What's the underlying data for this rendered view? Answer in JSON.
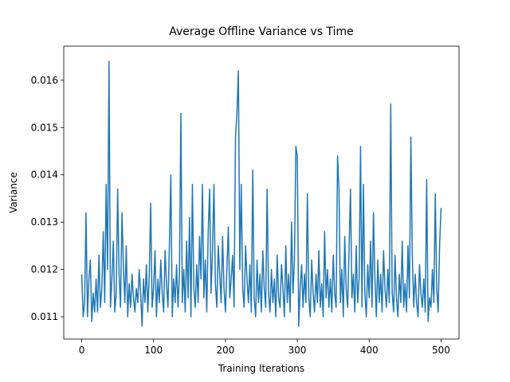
{
  "chart_data": {
    "type": "line",
    "title": "Average Offline Variance vs Time",
    "xlabel": "Training Iterations",
    "ylabel": "Variance",
    "color": "#1f77b4",
    "x": [
      0,
      2,
      4,
      6,
      8,
      10,
      12,
      14,
      16,
      18,
      20,
      22,
      24,
      26,
      28,
      30,
      32,
      34,
      36,
      38,
      40,
      42,
      44,
      46,
      48,
      50,
      52,
      54,
      56,
      58,
      60,
      62,
      64,
      66,
      68,
      70,
      72,
      74,
      76,
      78,
      80,
      82,
      84,
      86,
      88,
      90,
      92,
      94,
      96,
      98,
      100,
      102,
      104,
      106,
      108,
      110,
      112,
      114,
      116,
      118,
      120,
      122,
      124,
      126,
      128,
      130,
      132,
      134,
      136,
      138,
      140,
      142,
      144,
      146,
      148,
      150,
      152,
      154,
      156,
      158,
      160,
      162,
      164,
      166,
      168,
      170,
      172,
      174,
      176,
      178,
      180,
      182,
      184,
      186,
      188,
      190,
      192,
      194,
      196,
      198,
      200,
      202,
      204,
      206,
      208,
      210,
      212,
      214,
      216,
      218,
      220,
      222,
      224,
      226,
      228,
      230,
      232,
      234,
      236,
      238,
      240,
      242,
      244,
      246,
      248,
      250,
      252,
      254,
      256,
      258,
      260,
      262,
      264,
      266,
      268,
      270,
      272,
      274,
      276,
      278,
      280,
      282,
      284,
      286,
      288,
      290,
      292,
      294,
      296,
      298,
      300,
      302,
      304,
      306,
      308,
      310,
      312,
      314,
      316,
      318,
      320,
      322,
      324,
      326,
      328,
      330,
      332,
      334,
      336,
      338,
      340,
      342,
      344,
      346,
      348,
      350,
      352,
      354,
      356,
      358,
      360,
      362,
      364,
      366,
      368,
      370,
      372,
      374,
      376,
      378,
      380,
      382,
      384,
      386,
      388,
      390,
      392,
      394,
      396,
      398,
      400,
      402,
      404,
      406,
      408,
      410,
      412,
      414,
      416,
      418,
      420,
      422,
      424,
      426,
      428,
      430,
      432,
      434,
      436,
      438,
      440,
      442,
      444,
      446,
      448,
      450,
      452,
      454,
      456,
      458,
      460,
      462,
      464,
      466,
      468,
      470,
      472,
      474,
      476,
      478,
      480,
      482,
      484,
      486,
      488,
      490,
      492,
      494,
      496,
      498,
      500
    ],
    "values": [
      0.0119,
      0.011,
      0.0113,
      0.0132,
      0.011,
      0.0118,
      0.0122,
      0.0109,
      0.0115,
      0.0111,
      0.0118,
      0.0111,
      0.0123,
      0.0112,
      0.0116,
      0.0128,
      0.0113,
      0.0138,
      0.012,
      0.0164,
      0.0112,
      0.0118,
      0.0126,
      0.0111,
      0.0115,
      0.0137,
      0.0119,
      0.0112,
      0.0132,
      0.0121,
      0.0113,
      0.0125,
      0.011,
      0.0117,
      0.0112,
      0.0119,
      0.0114,
      0.0111,
      0.0116,
      0.0113,
      0.012,
      0.0115,
      0.0108,
      0.0118,
      0.0113,
      0.0121,
      0.0111,
      0.0119,
      0.0134,
      0.0112,
      0.0116,
      0.0124,
      0.011,
      0.0118,
      0.0113,
      0.0122,
      0.0115,
      0.0111,
      0.0124,
      0.0117,
      0.0112,
      0.0125,
      0.014,
      0.011,
      0.0118,
      0.0113,
      0.0121,
      0.0112,
      0.0119,
      0.0153,
      0.0113,
      0.012,
      0.0111,
      0.0126,
      0.0114,
      0.0131,
      0.011,
      0.0138,
      0.0116,
      0.0112,
      0.0121,
      0.0113,
      0.0127,
      0.0118,
      0.0138,
      0.0114,
      0.0122,
      0.0111,
      0.0128,
      0.0137,
      0.0115,
      0.0124,
      0.0138,
      0.0117,
      0.0112,
      0.0125,
      0.0119,
      0.0113,
      0.0127,
      0.0116,
      0.0111,
      0.012,
      0.0129,
      0.0114,
      0.0118,
      0.0123,
      0.0112,
      0.0148,
      0.0153,
      0.0162,
      0.012,
      0.0138,
      0.0116,
      0.0112,
      0.0125,
      0.0118,
      0.0113,
      0.0121,
      0.0111,
      0.0141,
      0.0114,
      0.011,
      0.0122,
      0.0113,
      0.0119,
      0.0111,
      0.0124,
      0.0116,
      0.0112,
      0.0137,
      0.0115,
      0.0111,
      0.012,
      0.0113,
      0.0118,
      0.011,
      0.0123,
      0.0114,
      0.0112,
      0.0121,
      0.0116,
      0.011,
      0.0125,
      0.0113,
      0.0119,
      0.0111,
      0.013,
      0.0115,
      0.0122,
      0.0146,
      0.0144,
      0.0108,
      0.0116,
      0.0121,
      0.0112,
      0.0119,
      0.0113,
      0.0136,
      0.0114,
      0.011,
      0.0122,
      0.0115,
      0.0111,
      0.0119,
      0.0113,
      0.0124,
      0.0112,
      0.0117,
      0.011,
      0.0128,
      0.0114,
      0.012,
      0.0112,
      0.0118,
      0.0111,
      0.0123,
      0.0115,
      0.0112,
      0.0144,
      0.0137,
      0.0113,
      0.012,
      0.011,
      0.0127,
      0.0116,
      0.0112,
      0.0124,
      0.0137,
      0.0114,
      0.0119,
      0.0111,
      0.0125,
      0.0113,
      0.0118,
      0.0146,
      0.0112,
      0.0138,
      0.0115,
      0.011,
      0.0121,
      0.0114,
      0.0126,
      0.0112,
      0.0132,
      0.0118,
      0.011,
      0.0122,
      0.0113,
      0.0119,
      0.0111,
      0.0124,
      0.0116,
      0.0112,
      0.012,
      0.0113,
      0.0155,
      0.0115,
      0.0111,
      0.0123,
      0.0114,
      0.011,
      0.0119,
      0.0113,
      0.0126,
      0.0112,
      0.0117,
      0.0111,
      0.0125,
      0.0114,
      0.0148,
      0.0123,
      0.0112,
      0.0119,
      0.0113,
      0.011,
      0.0121,
      0.0115,
      0.0112,
      0.0118,
      0.0111,
      0.0139,
      0.0109,
      0.0114,
      0.0112,
      0.012,
      0.0113,
      0.0136,
      0.0116,
      0.0111,
      0.0125,
      0.0133
    ],
    "xlim": [
      -25,
      525
    ],
    "ylim": [
      0.01053,
      0.01672
    ],
    "xticks": [
      0,
      100,
      200,
      300,
      400,
      500
    ],
    "yticks": [
      0.011,
      0.012,
      0.013,
      0.014,
      0.015,
      0.016
    ]
  }
}
